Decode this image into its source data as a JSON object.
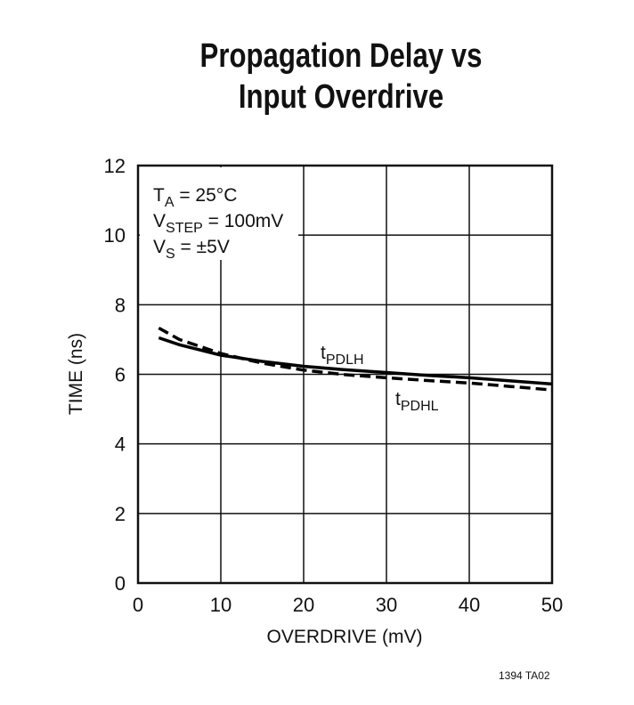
{
  "chart_data": {
    "type": "line",
    "title": [
      "Propagation Delay vs",
      "Input Overdrive"
    ],
    "xlabel": "OVERDRIVE (mV)",
    "ylabel": "TIME (ns)",
    "xlim": [
      0,
      50
    ],
    "ylim": [
      0,
      12
    ],
    "xticks": [
      0,
      10,
      20,
      30,
      40,
      50
    ],
    "yticks": [
      0,
      2,
      4,
      6,
      8,
      10,
      12
    ],
    "grid": true,
    "conditions": [
      {
        "main": "T",
        "sub": "A",
        "rest": " = 25°C"
      },
      {
        "main": "V",
        "sub": "STEP",
        "rest": " = 100mV"
      },
      {
        "main": "V",
        "sub": "S",
        "rest": " = ±5V"
      }
    ],
    "series": [
      {
        "name": "tPDLH",
        "label_main": "t",
        "label_sub": "PDLH",
        "style": "solid",
        "x": [
          2.5,
          5,
          10,
          15,
          20,
          25,
          30,
          35,
          40,
          45,
          50
        ],
        "y": [
          7.05,
          6.85,
          6.55,
          6.37,
          6.23,
          6.13,
          6.05,
          5.97,
          5.9,
          5.81,
          5.72
        ]
      },
      {
        "name": "tPDHL",
        "label_main": "t",
        "label_sub": "PDHL",
        "style": "dashed",
        "x": [
          2.5,
          5,
          10,
          15,
          20,
          25,
          30,
          35,
          40,
          45,
          50
        ],
        "y": [
          7.33,
          7.0,
          6.6,
          6.32,
          6.12,
          5.99,
          5.9,
          5.82,
          5.75,
          5.65,
          5.55
        ]
      }
    ],
    "color": "#000000"
  },
  "footnote": "1394 TA02"
}
